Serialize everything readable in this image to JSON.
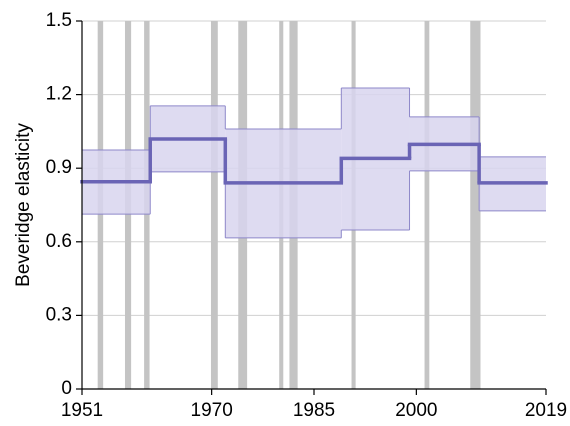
{
  "chart_data": {
    "type": "step",
    "y_label": "Beveridge elasticity",
    "xlim": [
      1951,
      2019
    ],
    "xticks": [
      1951,
      1970,
      1985,
      2000,
      2019
    ],
    "ylim": [
      0,
      1.5
    ],
    "yticks": [
      0,
      0.3,
      0.6,
      0.9,
      1.2,
      1.5
    ],
    "grid": true,
    "line_color": "#6a64b5",
    "band_color": "#d8d5ee",
    "band_edge_color": "#8d87c9",
    "shade_color": "#c4c4c4",
    "segments": [
      {
        "start": 1951,
        "end": 1961,
        "value": 0.845,
        "lower": 0.713,
        "upper": 0.974
      },
      {
        "start": 1961,
        "end": 1972,
        "value": 1.019,
        "lower": 0.885,
        "upper": 1.154
      },
      {
        "start": 1972,
        "end": 1989,
        "value": 0.84,
        "lower": 0.616,
        "upper": 1.06
      },
      {
        "start": 1989,
        "end": 1999,
        "value": 0.94,
        "lower": 0.648,
        "upper": 1.227
      },
      {
        "start": 1999,
        "end": 2009.2,
        "value": 0.997,
        "lower": 0.889,
        "upper": 1.109
      },
      {
        "start": 2009.2,
        "end": 2019,
        "value": 0.84,
        "lower": 0.726,
        "upper": 0.946
      }
    ],
    "shaded_periods": [
      [
        1953.3,
        1954.1
      ],
      [
        1957.3,
        1958.2
      ],
      [
        1960.1,
        1960.9
      ],
      [
        1969.9,
        1970.9
      ],
      [
        1973.9,
        1975.2
      ],
      [
        1979.9,
        1980.5
      ],
      [
        1981.4,
        1982.6
      ],
      [
        1990.5,
        1991.1
      ],
      [
        2001.2,
        2001.9
      ],
      [
        2007.9,
        2009.4
      ]
    ]
  }
}
